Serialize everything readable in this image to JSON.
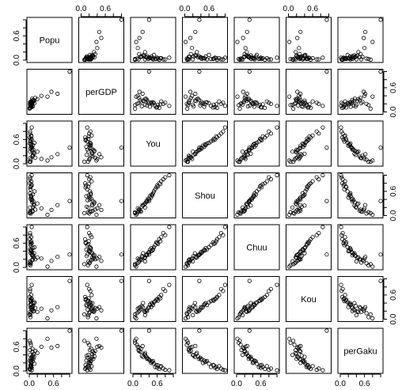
{
  "chart_data": {
    "type": "scatter",
    "variables": [
      "Popu",
      "perGDP",
      "You",
      "Shou",
      "Chuu",
      "Kou",
      "perGaku"
    ],
    "tick_labels": [
      "0.0",
      "0.6"
    ],
    "axis_range": [
      0,
      1
    ],
    "grid": false,
    "colors": {
      "points": "#000000",
      "frame": "#000000",
      "background": "#ffffff"
    },
    "values": {
      "Popu": [
        0.02,
        0.05,
        0.08,
        0.03,
        0.1,
        0.04,
        0.06,
        0.12,
        0.02,
        0.15,
        0.01,
        0.07,
        0.03,
        0.2,
        0.05,
        0.09,
        0.04,
        0.3,
        0.02,
        0.06,
        0.11,
        0.03,
        0.08,
        0.45,
        0.05,
        0.02,
        0.07,
        0.13,
        0.04,
        0.55,
        0.03,
        0.06,
        0.01,
        0.09,
        0.7,
        0.05,
        0.02,
        1.0
      ],
      "perGDP": [
        0.18,
        0.22,
        0.25,
        0.15,
        0.3,
        0.2,
        0.12,
        0.28,
        0.24,
        0.35,
        0.1,
        0.21,
        0.17,
        0.32,
        0.26,
        0.14,
        0.19,
        0.4,
        0.23,
        0.16,
        0.27,
        0.11,
        0.29,
        0.38,
        0.13,
        0.2,
        0.33,
        0.22,
        0.18,
        0.5,
        0.25,
        0.15,
        0.08,
        0.24,
        0.45,
        0.19,
        0.22,
        1.0
      ],
      "You": [
        0.3,
        0.45,
        0.2,
        0.55,
        0.35,
        0.1,
        0.6,
        0.25,
        0.5,
        0.15,
        0.65,
        0.4,
        0.05,
        0.3,
        0.7,
        0.22,
        0.48,
        0.12,
        0.8,
        0.35,
        0.28,
        0.58,
        0.18,
        0.08,
        0.42,
        0.75,
        0.32,
        0.52,
        0.62,
        0.16,
        0.38,
        0.9,
        0.05,
        0.46,
        0.24,
        0.68,
        0.14,
        0.4
      ],
      "Shou": [
        0.2,
        0.45,
        0.1,
        0.65,
        0.35,
        0.05,
        0.75,
        0.25,
        0.55,
        0.15,
        0.8,
        0.4,
        0.08,
        0.3,
        0.85,
        0.22,
        0.5,
        0.18,
        0.95,
        0.38,
        0.28,
        0.7,
        0.12,
        0.02,
        0.48,
        0.9,
        0.33,
        0.6,
        0.72,
        0.14,
        0.42,
        1.0,
        0.06,
        0.52,
        0.26,
        0.78,
        0.1,
        0.36
      ],
      "Chuu": [
        0.15,
        0.4,
        0.18,
        0.55,
        0.3,
        0.1,
        0.6,
        0.35,
        0.45,
        0.2,
        0.7,
        0.38,
        0.05,
        0.25,
        0.75,
        0.28,
        0.42,
        0.22,
        0.8,
        0.33,
        0.24,
        0.62,
        0.2,
        0.02,
        0.44,
        0.85,
        0.3,
        0.5,
        0.58,
        0.16,
        0.36,
        1.0,
        0.08,
        0.48,
        0.26,
        0.65,
        0.12,
        0.32
      ],
      "Kou": [
        0.1,
        0.3,
        0.25,
        0.45,
        0.2,
        0.15,
        0.5,
        0.4,
        0.35,
        0.28,
        0.55,
        0.3,
        0.05,
        0.18,
        0.6,
        0.33,
        0.38,
        0.26,
        0.7,
        0.24,
        0.2,
        0.48,
        0.3,
        0.02,
        0.36,
        0.75,
        0.22,
        0.42,
        0.46,
        0.22,
        0.28,
        0.85,
        0.12,
        0.4,
        0.3,
        0.52,
        0.18,
        0.95
      ],
      "perGaku": [
        0.4,
        0.2,
        0.55,
        0.1,
        0.3,
        0.65,
        0.08,
        0.35,
        0.25,
        0.5,
        0.05,
        0.28,
        0.7,
        0.45,
        0.12,
        0.38,
        0.22,
        0.6,
        0.03,
        0.33,
        0.42,
        0.15,
        0.48,
        0.8,
        0.26,
        0.06,
        0.36,
        0.18,
        0.14,
        0.58,
        0.3,
        0.02,
        0.75,
        0.24,
        0.62,
        0.1,
        0.52,
        1.0
      ]
    }
  }
}
